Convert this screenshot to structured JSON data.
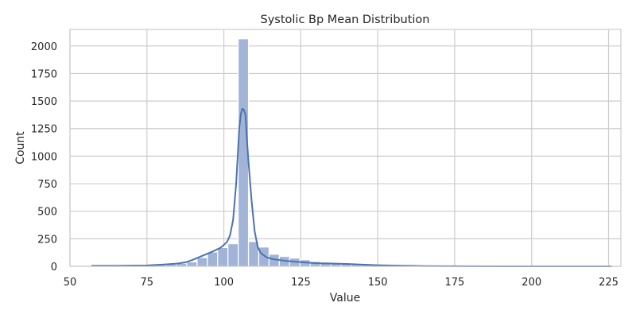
{
  "chart_data": {
    "type": "histogram",
    "title": "Systolic Bp Mean Distribution",
    "xlabel": "Value",
    "ylabel": "Count",
    "xlim": [
      50,
      229
    ],
    "ylim": [
      0,
      2150
    ],
    "xticks": [
      50,
      75,
      100,
      125,
      150,
      175,
      200,
      225
    ],
    "yticks": [
      0,
      250,
      500,
      750,
      1000,
      1250,
      1500,
      1750,
      2000
    ],
    "grid": true,
    "bar_color": "#a1b4d8",
    "kde_color": "#4c72b0",
    "bins": {
      "width": 3.34,
      "edges_start": 57.9,
      "counts": [
        5,
        3,
        3,
        4,
        6,
        10,
        15,
        20,
        28,
        40,
        80,
        130,
        170,
        205,
        2065,
        225,
        175,
        110,
        90,
        75,
        60,
        45,
        38,
        30,
        25,
        22,
        18,
        14,
        10,
        8,
        6,
        5,
        4,
        3,
        3,
        2,
        2,
        2,
        1,
        1,
        1,
        1,
        1,
        1,
        1,
        1,
        1,
        1,
        1,
        1
      ]
    },
    "kde": {
      "x": [
        57,
        65,
        75,
        80,
        85,
        88,
        90,
        93,
        96,
        99,
        101,
        102,
        103,
        104,
        105,
        105.5,
        106,
        106.5,
        107,
        107.5,
        108,
        109,
        110,
        111,
        112,
        114,
        116,
        120,
        125,
        130,
        135,
        140,
        145,
        150,
        155,
        160,
        165,
        170,
        180,
        190,
        200,
        210,
        220,
        226
      ],
      "y": [
        5,
        5,
        8,
        15,
        25,
        40,
        60,
        95,
        130,
        170,
        220,
        280,
        420,
        750,
        1250,
        1380,
        1430,
        1420,
        1380,
        1150,
        950,
        600,
        320,
        175,
        120,
        80,
        65,
        50,
        38,
        28,
        25,
        22,
        15,
        10,
        7,
        5,
        3,
        2,
        1,
        0,
        0,
        0,
        0,
        0
      ]
    }
  }
}
